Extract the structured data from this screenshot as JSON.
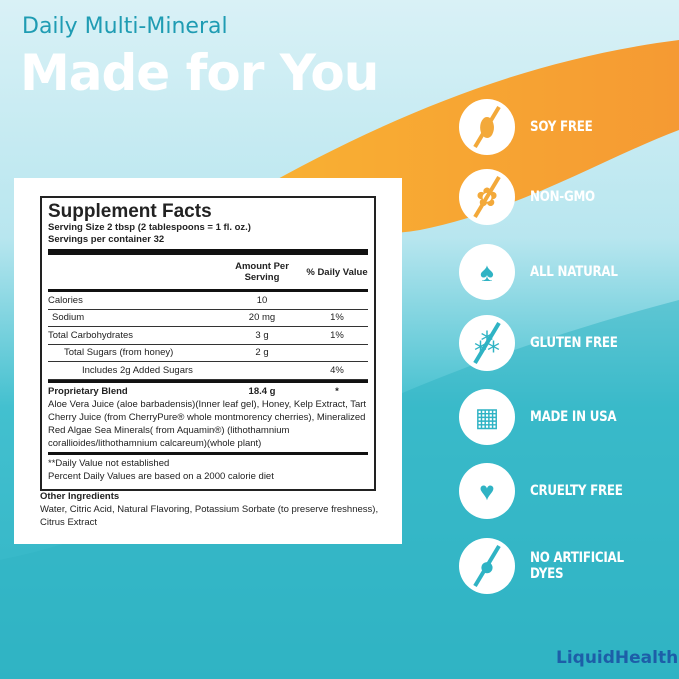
{
  "header": {
    "subtitle": "Daily Multi-Mineral",
    "title": "Made for You"
  },
  "colors": {
    "orange": "#f7a43a",
    "teal": "#2fb3c4",
    "header_teal": "#1f9cb3",
    "logo_blue": "#1d5ea8"
  },
  "facts": {
    "title": "Supplement Facts",
    "serving_size": "Serving Size 2 tbsp (2 tablespoons = 1 fl. oz.)",
    "servings": "Servings per container 32",
    "col_amount": "Amount Per Serving",
    "col_dv": "% Daily Value",
    "rows": [
      {
        "name": "Calories",
        "amount": "10",
        "dv": ""
      },
      {
        "name": "Sodium",
        "amount": "20 mg",
        "dv": "1%"
      },
      {
        "name": "Total Carbohydrates",
        "amount": "3 g",
        "dv": "1%"
      },
      {
        "name": "Total Sugars (from honey)",
        "amount": "2 g",
        "dv": ""
      },
      {
        "name": "Includes 2g Added Sugars",
        "amount": "",
        "dv": "4%"
      }
    ],
    "blend_name": "Proprietary Blend",
    "blend_amount": "18.4 g",
    "blend_dv": "*",
    "blend_text": "Aloe Vera Juice (aloe barbadensis)(Inner leaf gel), Honey, Kelp Extract, Tart Cherry Juice (from CherryPure® whole montmorency cherries), Mineralized Red Algae Sea Minerals( from Aquamin®) (lithothamnium corallioides/lithothamnium calcareum)(whole plant)",
    "foot1": "**Daily Value not established",
    "foot2": "Percent Daily Values are based on a 2000 calorie diet"
  },
  "other": {
    "title": "Other Ingredients",
    "text": "Water, Citric Acid, Natural Flavoring, Potassium Sorbate (to preserve freshness), Citrus Extract"
  },
  "badges": [
    {
      "label": "SOY FREE",
      "icon": "soybean-crossed-icon"
    },
    {
      "label": "NON-GMO",
      "icon": "wheat-crossed-icon"
    },
    {
      "label": "ALL NATURAL",
      "icon": "leaf-icon"
    },
    {
      "label": "GLUTEN FREE",
      "icon": "grain-crossed-icon"
    },
    {
      "label": "MADE IN USA",
      "icon": "usa-flag-map-icon"
    },
    {
      "label": "CRUELTY FREE",
      "icon": "bunny-heart-icon"
    },
    {
      "label": "NO ARTIFICIAL DYES",
      "icon": "drop-crossed-icon"
    }
  ],
  "logo": "LiquidHealth"
}
